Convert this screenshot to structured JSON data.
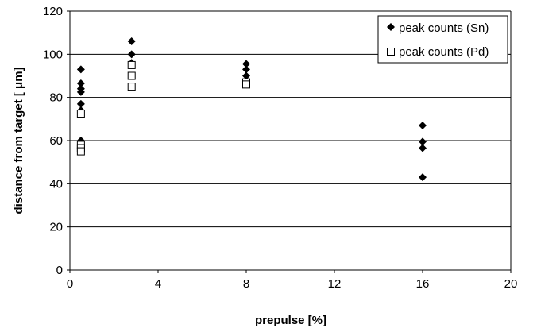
{
  "chart_data": {
    "type": "scatter",
    "xlabel": "prepulse [%]",
    "ylabel": "distance from target [ μm]",
    "xlim": [
      0,
      20
    ],
    "ylim": [
      0,
      120
    ],
    "xticks": [
      0,
      4,
      8,
      12,
      16,
      20
    ],
    "yticks": [
      0,
      20,
      40,
      60,
      80,
      100,
      120
    ],
    "grid": "horizontal",
    "legend_position": "top-right",
    "series": [
      {
        "name": "peak counts (Sn)",
        "marker": "filled-diamond",
        "color": "#000000",
        "points": [
          {
            "x": 0.5,
            "y": 93
          },
          {
            "x": 0.5,
            "y": 86.5
          },
          {
            "x": 0.5,
            "y": 84
          },
          {
            "x": 0.5,
            "y": 82.5
          },
          {
            "x": 0.5,
            "y": 77
          },
          {
            "x": 0.5,
            "y": 74
          },
          {
            "x": 0.5,
            "y": 60
          },
          {
            "x": 2.8,
            "y": 106
          },
          {
            "x": 2.8,
            "y": 100
          },
          {
            "x": 2.8,
            "y": 96
          },
          {
            "x": 8,
            "y": 95.5
          },
          {
            "x": 8,
            "y": 93
          },
          {
            "x": 8,
            "y": 90
          },
          {
            "x": 8,
            "y": 87.5
          },
          {
            "x": 16,
            "y": 67
          },
          {
            "x": 16,
            "y": 59.5
          },
          {
            "x": 16,
            "y": 56.5
          },
          {
            "x": 16,
            "y": 43
          }
        ]
      },
      {
        "name": "peak counts (Pd)",
        "marker": "open-square",
        "color": "#000000",
        "points": [
          {
            "x": 0.5,
            "y": 72.5
          },
          {
            "x": 0.5,
            "y": 58
          },
          {
            "x": 0.5,
            "y": 56.5
          },
          {
            "x": 0.5,
            "y": 55
          },
          {
            "x": 2.8,
            "y": 95
          },
          {
            "x": 2.8,
            "y": 90
          },
          {
            "x": 2.8,
            "y": 85
          },
          {
            "x": 8,
            "y": 87
          },
          {
            "x": 8,
            "y": 86
          }
        ]
      }
    ]
  }
}
